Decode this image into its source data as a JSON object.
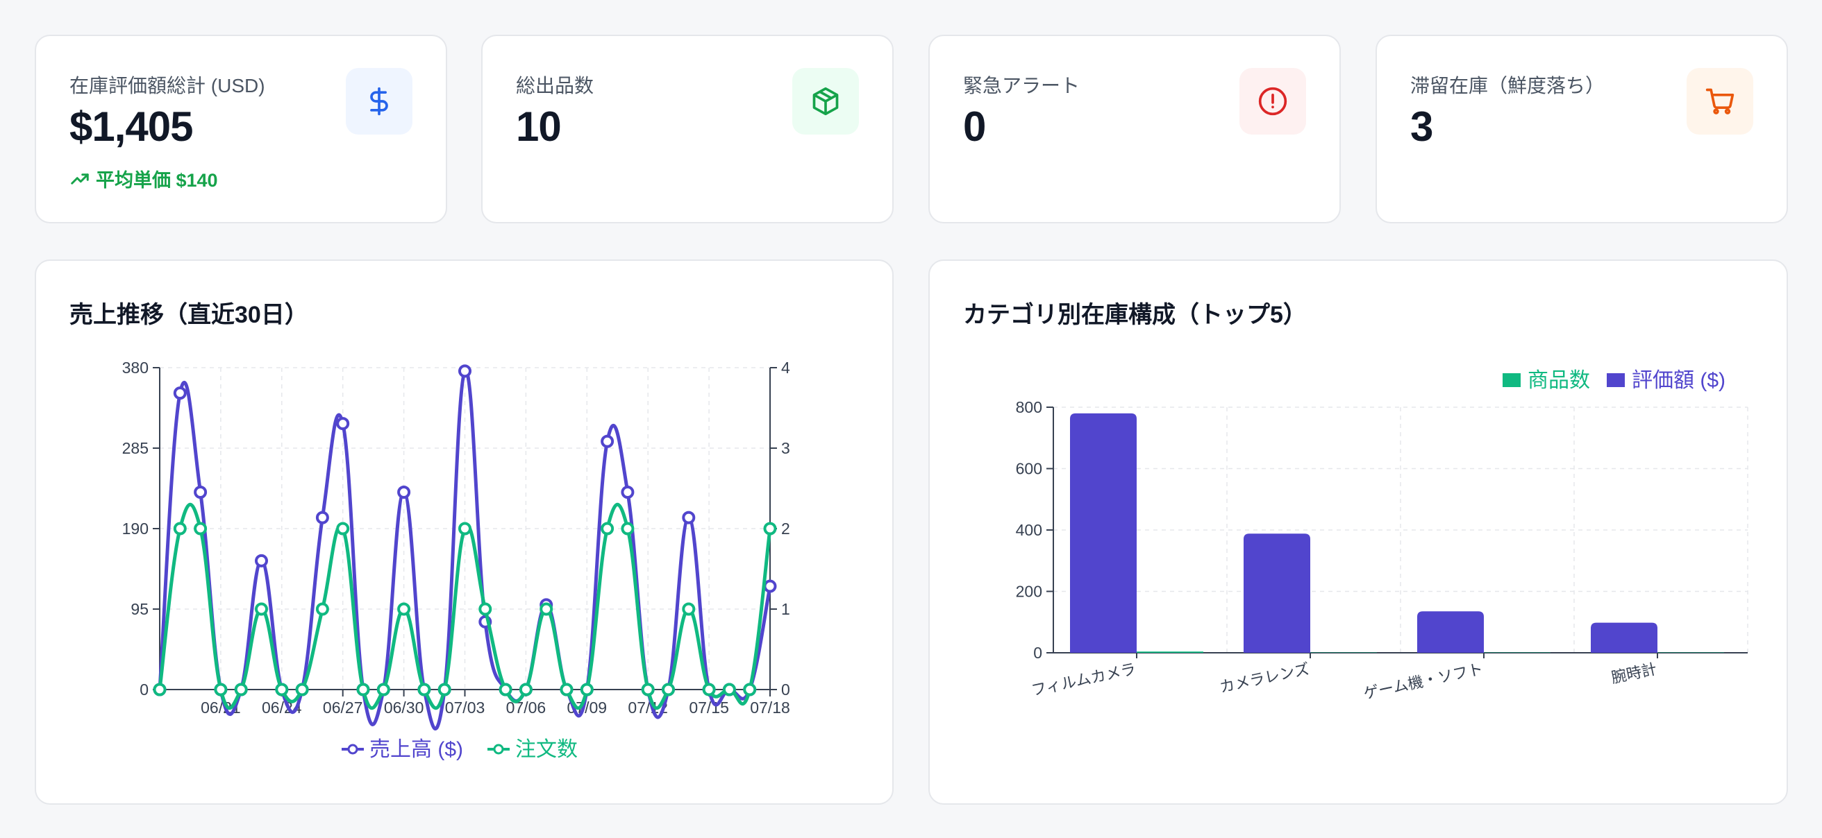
{
  "stats": [
    {
      "label": "在庫評価額総計 (USD)",
      "value": "$1,405",
      "sub": "平均単価 $140",
      "icon": "dollar-icon",
      "icon_color": "#2563eb",
      "icon_bg": "#eff5ff"
    },
    {
      "label": "総出品数",
      "value": "10",
      "icon": "package-icon",
      "icon_color": "#16a34a",
      "icon_bg": "#ecfdf3"
    },
    {
      "label": "緊急アラート",
      "value": "0",
      "icon": "alert-circle-icon",
      "icon_color": "#dc2626",
      "icon_bg": "#fef1f1"
    },
    {
      "label": "滞留在庫（鮮度落ち）",
      "value": "3",
      "icon": "cart-icon",
      "icon_color": "#ea580c",
      "icon_bg": "#fff5eb"
    }
  ],
  "sales_panel": {
    "title": "売上推移（直近30日）"
  },
  "category_panel": {
    "title": "カテゴリ別在庫構成（トップ5）"
  },
  "chart_data": [
    {
      "type": "line",
      "x": [
        "06/18",
        "06/19",
        "06/20",
        "06/21",
        "06/22",
        "06/23",
        "06/24",
        "06/25",
        "06/26",
        "06/27",
        "06/28",
        "06/29",
        "06/30",
        "07/01",
        "07/02",
        "07/03",
        "07/04",
        "07/05",
        "07/06",
        "07/07",
        "07/08",
        "07/09",
        "07/10",
        "07/11",
        "07/12",
        "07/13",
        "07/14",
        "07/15",
        "07/16",
        "07/17",
        "07/18"
      ],
      "x_tick_labels": [
        "06/21",
        "06/24",
        "06/27",
        "06/30",
        "07/03",
        "07/06",
        "07/09",
        "07/12",
        "07/15",
        "07/18"
      ],
      "series": [
        {
          "name": "売上高 ($)",
          "axis": "left",
          "color": "#5145cd",
          "values": [
            0,
            350,
            233,
            0,
            0,
            152,
            0,
            0,
            203,
            314,
            0,
            0,
            233,
            0,
            0,
            376,
            80,
            0,
            0,
            100,
            0,
            0,
            293,
            233,
            0,
            0,
            203,
            0,
            0,
            0,
            122
          ]
        },
        {
          "name": "注文数",
          "axis": "right",
          "color": "#10b981",
          "values": [
            0,
            2,
            2,
            0,
            0,
            1,
            0,
            0,
            1,
            2,
            0,
            0,
            1,
            0,
            0,
            2,
            1,
            0,
            0,
            1,
            0,
            0,
            2,
            2,
            0,
            0,
            1,
            0,
            0,
            0,
            2
          ]
        }
      ],
      "ylim_left": [
        0,
        380
      ],
      "yticks_left": [
        0,
        95,
        190,
        285,
        380
      ],
      "ylim_right": [
        0,
        4
      ],
      "yticks_right": [
        0,
        1,
        2,
        3,
        4
      ],
      "grid": true,
      "legend": "bottom"
    },
    {
      "type": "bar",
      "categories": [
        "フィルムカメラ",
        "カメラレンズ",
        "ゲーム機・ソフト",
        "腕時計"
      ],
      "series": [
        {
          "name": "商品数",
          "color": "#10b981",
          "values": [
            4,
            1,
            1,
            1
          ]
        },
        {
          "name": "評価額 ($)",
          "color": "#5145cd",
          "values": [
            780,
            388,
            135,
            98
          ]
        }
      ],
      "ylim": [
        0,
        800
      ],
      "yticks": [
        0,
        200,
        400,
        600,
        800
      ],
      "grid": true,
      "legend": "top-right"
    }
  ]
}
